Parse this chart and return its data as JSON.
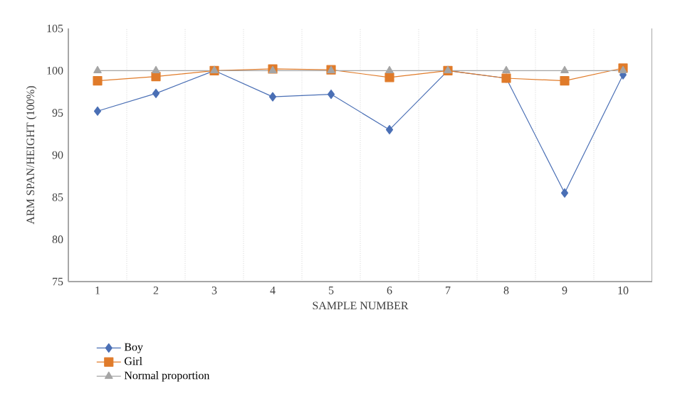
{
  "chart_data": {
    "type": "line",
    "xlabel": "SAMPLE NUMBER",
    "ylabel": "ARM SPAN/HEIGHT (100%)",
    "categories": [
      "1",
      "2",
      "3",
      "4",
      "5",
      "6",
      "7",
      "8",
      "9",
      "10"
    ],
    "series": [
      {
        "name": "Boy",
        "color": "#4a6fb5",
        "marker": "diamond",
        "values": [
          95.2,
          97.3,
          100,
          96.9,
          97.2,
          93.0,
          100,
          99.1,
          85.5,
          99.5
        ]
      },
      {
        "name": "Girl",
        "color": "#e07b2a",
        "marker": "square",
        "values": [
          98.8,
          99.3,
          100,
          100.2,
          100.1,
          99.2,
          100,
          99.1,
          98.8,
          100.3
        ]
      },
      {
        "name": "Normal proportion",
        "color": "#a5a5a5",
        "marker": "triangle",
        "values": [
          100,
          100,
          100,
          100,
          100,
          100,
          100,
          100,
          100,
          100
        ]
      }
    ],
    "ylim": [
      75,
      105
    ],
    "yticks": [
      75,
      80,
      85,
      90,
      95,
      100,
      105
    ],
    "grid": "x",
    "legend": "bottom left",
    "line_style": "solid"
  }
}
